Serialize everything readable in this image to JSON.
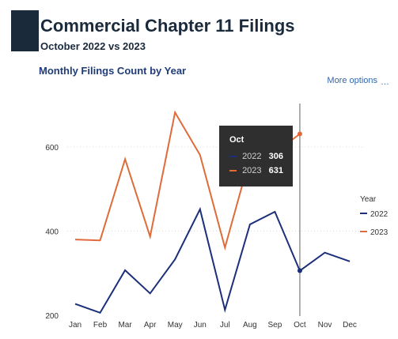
{
  "header": {
    "title": "Commercial Chapter 11 Filings",
    "subtitle": "October 2022 vs 2023"
  },
  "chart_title": "Monthly Filings Count by Year",
  "more_options": "More options",
  "chart_data": {
    "type": "line",
    "title": "Monthly Filings Count by Year",
    "categories": [
      "Jan",
      "Feb",
      "Mar",
      "Apr",
      "May",
      "Jun",
      "Jul",
      "Aug",
      "Sep",
      "Oct",
      "Nov",
      "Dec"
    ],
    "series": [
      {
        "name": "2022",
        "color": "#1c2f7a",
        "values": [
          227,
          206,
          307,
          252,
          333,
          452,
          213,
          416,
          446,
          306,
          349,
          328
        ]
      },
      {
        "name": "2023",
        "color": "#e06b3a",
        "values": [
          380,
          378,
          571,
          387,
          682,
          581,
          361,
          575,
          586,
          631,
          null,
          null
        ]
      }
    ],
    "yticks": [
      200,
      400,
      600
    ],
    "ylim": [
      200,
      680
    ],
    "legend_title": "Year",
    "legend_position": "right",
    "grid": true,
    "hover_category": "Oct"
  },
  "tooltip": {
    "title": "Oct",
    "rows": [
      {
        "year": "2022",
        "value": "306",
        "color": "#1c2f7a"
      },
      {
        "year": "2023",
        "value": "631",
        "color": "#e06b3a"
      }
    ]
  }
}
